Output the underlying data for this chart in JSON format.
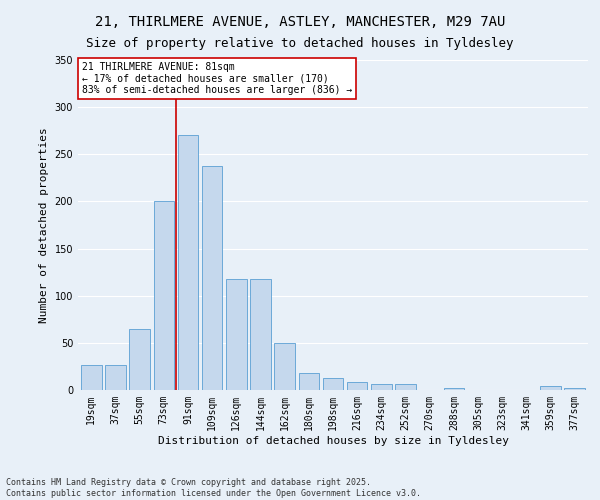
{
  "title1": "21, THIRLMERE AVENUE, ASTLEY, MANCHESTER, M29 7AU",
  "title2": "Size of property relative to detached houses in Tyldesley",
  "xlabel": "Distribution of detached houses by size in Tyldesley",
  "ylabel": "Number of detached properties",
  "categories": [
    "19sqm",
    "37sqm",
    "55sqm",
    "73sqm",
    "91sqm",
    "109sqm",
    "126sqm",
    "144sqm",
    "162sqm",
    "180sqm",
    "198sqm",
    "216sqm",
    "234sqm",
    "252sqm",
    "270sqm",
    "288sqm",
    "305sqm",
    "323sqm",
    "341sqm",
    "359sqm",
    "377sqm"
  ],
  "values": [
    27,
    27,
    65,
    200,
    270,
    238,
    118,
    118,
    50,
    18,
    13,
    9,
    6,
    6,
    0,
    2,
    0,
    0,
    0,
    4,
    2
  ],
  "bar_color": "#c5d8ed",
  "bar_edge_color": "#5a9fd4",
  "vline_x_index": 3,
  "vline_color": "#cc0000",
  "annotation_text": "21 THIRLMERE AVENUE: 81sqm\n← 17% of detached houses are smaller (170)\n83% of semi-detached houses are larger (836) →",
  "annotation_box_color": "#ffffff",
  "annotation_box_edge": "#cc0000",
  "footnote": "Contains HM Land Registry data © Crown copyright and database right 2025.\nContains public sector information licensed under the Open Government Licence v3.0.",
  "ylim": [
    0,
    350
  ],
  "yticks": [
    0,
    50,
    100,
    150,
    200,
    250,
    300,
    350
  ],
  "bg_color": "#e8f0f8",
  "grid_color": "#ffffff",
  "title1_fontsize": 10,
  "title2_fontsize": 9,
  "axis_label_fontsize": 8,
  "tick_fontsize": 7,
  "annot_fontsize": 7,
  "footnote_fontsize": 6
}
